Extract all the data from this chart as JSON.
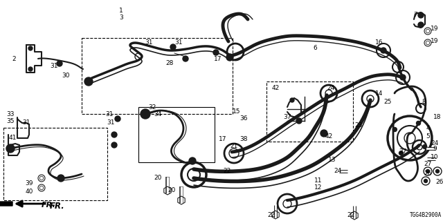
{
  "bg_color": "#ffffff",
  "diagram_code": "TGG4B2900A",
  "font_size": 6.5,
  "line_color": "#1a1a1a",
  "box_color": "#000000"
}
